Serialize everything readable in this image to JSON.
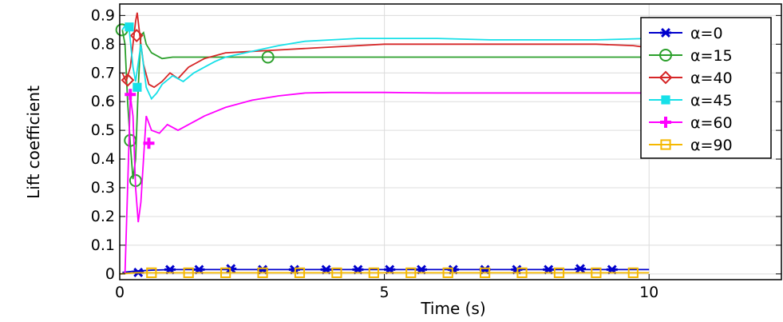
{
  "chart_data": {
    "type": "line",
    "title": "",
    "xlabel": "Time (s)",
    "ylabel": "Lift coefficient",
    "xlim": [
      0,
      12.5
    ],
    "ylim": [
      -0.02,
      0.94
    ],
    "x_ticks": [
      0,
      5,
      10
    ],
    "y_ticks": [
      0,
      0.1,
      0.2,
      0.3,
      0.4,
      0.5,
      0.6,
      0.7,
      0.8,
      0.9
    ],
    "x_tick_labels": [
      "0",
      "5",
      "10"
    ],
    "y_tick_labels": [
      "0",
      "0.1",
      "0.2",
      "0.3",
      "0.4",
      "0.5",
      "0.6",
      "0.7",
      "0.8",
      "0.9"
    ],
    "grid": true,
    "legend_position": "top-right",
    "series": [
      {
        "name": "α=0",
        "color": "#0000cc",
        "marker": "asterisk",
        "points": [
          [
            0.05,
            0.005
          ],
          [
            0.3,
            0.01
          ],
          [
            0.6,
            0.013
          ],
          [
            1.0,
            0.015
          ],
          [
            2,
            0.015
          ],
          [
            4,
            0.015
          ],
          [
            6,
            0.015
          ],
          [
            8,
            0.015
          ],
          [
            10,
            0.015
          ]
        ],
        "markers": [
          [
            0.35,
            0.005
          ],
          [
            0.95,
            0.015
          ],
          [
            1.5,
            0.015
          ],
          [
            2.1,
            0.018
          ],
          [
            2.7,
            0.015
          ],
          [
            3.3,
            0.015
          ],
          [
            3.9,
            0.015
          ],
          [
            4.5,
            0.015
          ],
          [
            5.1,
            0.015
          ],
          [
            5.7,
            0.015
          ],
          [
            6.3,
            0.015
          ],
          [
            6.9,
            0.015
          ],
          [
            7.5,
            0.015
          ],
          [
            8.1,
            0.015
          ],
          [
            8.7,
            0.018
          ],
          [
            9.3,
            0.015
          ]
        ]
      },
      {
        "name": "α=15",
        "color": "#2ca02c",
        "marker": "circle",
        "points": [
          [
            0.05,
            0.85
          ],
          [
            0.1,
            0.8
          ],
          [
            0.15,
            0.6
          ],
          [
            0.2,
            0.45
          ],
          [
            0.25,
            0.33
          ],
          [
            0.3,
            0.4
          ],
          [
            0.35,
            0.65
          ],
          [
            0.4,
            0.83
          ],
          [
            0.45,
            0.84
          ],
          [
            0.5,
            0.8
          ],
          [
            0.6,
            0.77
          ],
          [
            0.8,
            0.75
          ],
          [
            1.0,
            0.755
          ],
          [
            2,
            0.755
          ],
          [
            4,
            0.755
          ],
          [
            6,
            0.755
          ],
          [
            8,
            0.755
          ],
          [
            10,
            0.755
          ]
        ],
        "markers": [
          [
            0.04,
            0.85
          ],
          [
            0.2,
            0.465
          ],
          [
            0.3,
            0.325
          ],
          [
            2.8,
            0.755
          ]
        ]
      },
      {
        "name": "α=40",
        "color": "#d62728",
        "marker": "diamond",
        "points": [
          [
            0.05,
            0.7
          ],
          [
            0.12,
            0.67
          ],
          [
            0.2,
            0.72
          ],
          [
            0.25,
            0.8
          ],
          [
            0.3,
            0.88
          ],
          [
            0.33,
            0.91
          ],
          [
            0.38,
            0.83
          ],
          [
            0.45,
            0.73
          ],
          [
            0.55,
            0.66
          ],
          [
            0.65,
            0.65
          ],
          [
            0.8,
            0.67
          ],
          [
            0.95,
            0.7
          ],
          [
            1.1,
            0.68
          ],
          [
            1.3,
            0.72
          ],
          [
            1.6,
            0.75
          ],
          [
            2,
            0.77
          ],
          [
            2.5,
            0.775
          ],
          [
            3,
            0.78
          ],
          [
            4,
            0.79
          ],
          [
            5,
            0.8
          ],
          [
            6,
            0.8
          ],
          [
            7,
            0.8
          ],
          [
            8,
            0.8
          ],
          [
            9,
            0.8
          ],
          [
            9.7,
            0.795
          ],
          [
            9.9,
            0.79
          ],
          [
            10,
            0.775
          ]
        ],
        "markers": [
          [
            0.15,
            0.675
          ],
          [
            0.32,
            0.83
          ]
        ]
      },
      {
        "name": "α=45",
        "color": "#17e0e8",
        "marker": "square",
        "points": [
          [
            0.05,
            0.85
          ],
          [
            0.12,
            0.87
          ],
          [
            0.18,
            0.85
          ],
          [
            0.25,
            0.72
          ],
          [
            0.3,
            0.67
          ],
          [
            0.4,
            0.8
          ],
          [
            0.5,
            0.65
          ],
          [
            0.6,
            0.61
          ],
          [
            0.7,
            0.63
          ],
          [
            0.8,
            0.66
          ],
          [
            1.0,
            0.69
          ],
          [
            1.2,
            0.67
          ],
          [
            1.4,
            0.7
          ],
          [
            1.6,
            0.72
          ],
          [
            1.8,
            0.74
          ],
          [
            2,
            0.755
          ],
          [
            2.5,
            0.775
          ],
          [
            3,
            0.795
          ],
          [
            3.5,
            0.81
          ],
          [
            4,
            0.815
          ],
          [
            4.5,
            0.82
          ],
          [
            5,
            0.82
          ],
          [
            6,
            0.82
          ],
          [
            7,
            0.815
          ],
          [
            8,
            0.815
          ],
          [
            9,
            0.815
          ],
          [
            10,
            0.82
          ]
        ],
        "markers": [
          [
            0.18,
            0.86
          ],
          [
            0.33,
            0.65
          ]
        ]
      },
      {
        "name": "α=60",
        "color": "#ff00ff",
        "marker": "plus",
        "points": [
          [
            0.1,
            0.0
          ],
          [
            0.15,
            0.3
          ],
          [
            0.2,
            0.62
          ],
          [
            0.25,
            0.55
          ],
          [
            0.3,
            0.3
          ],
          [
            0.35,
            0.18
          ],
          [
            0.4,
            0.25
          ],
          [
            0.45,
            0.4
          ],
          [
            0.5,
            0.55
          ],
          [
            0.6,
            0.5
          ],
          [
            0.75,
            0.49
          ],
          [
            0.9,
            0.52
          ],
          [
            1.1,
            0.5
          ],
          [
            1.3,
            0.52
          ],
          [
            1.6,
            0.55
          ],
          [
            2,
            0.58
          ],
          [
            2.5,
            0.605
          ],
          [
            3,
            0.62
          ],
          [
            3.5,
            0.63
          ],
          [
            4,
            0.632
          ],
          [
            5,
            0.632
          ],
          [
            6,
            0.63
          ],
          [
            7,
            0.63
          ],
          [
            8,
            0.63
          ],
          [
            9,
            0.63
          ],
          [
            10,
            0.63
          ]
        ],
        "markers": [
          [
            0.2,
            0.625
          ],
          [
            0.55,
            0.455
          ]
        ]
      },
      {
        "name": "α=90",
        "color": "#f5b800",
        "marker": "square-open",
        "points": [
          [
            0.0,
            0.0
          ],
          [
            0.3,
            0.004
          ],
          [
            0.6,
            0.004
          ],
          [
            2,
            0.004
          ],
          [
            4,
            0.004
          ],
          [
            6,
            0.004
          ],
          [
            8,
            0.004
          ],
          [
            10,
            0.004
          ]
        ],
        "markers": [
          [
            0.6,
            0.004
          ],
          [
            1.3,
            0.004
          ],
          [
            2.0,
            0.004
          ],
          [
            2.7,
            0.004
          ],
          [
            3.4,
            0.004
          ],
          [
            4.1,
            0.004
          ],
          [
            4.8,
            0.004
          ],
          [
            5.5,
            0.004
          ],
          [
            6.2,
            0.004
          ],
          [
            6.9,
            0.004
          ],
          [
            7.6,
            0.004
          ],
          [
            8.3,
            0.004
          ],
          [
            9.0,
            0.004
          ],
          [
            9.7,
            0.004
          ]
        ]
      }
    ]
  }
}
